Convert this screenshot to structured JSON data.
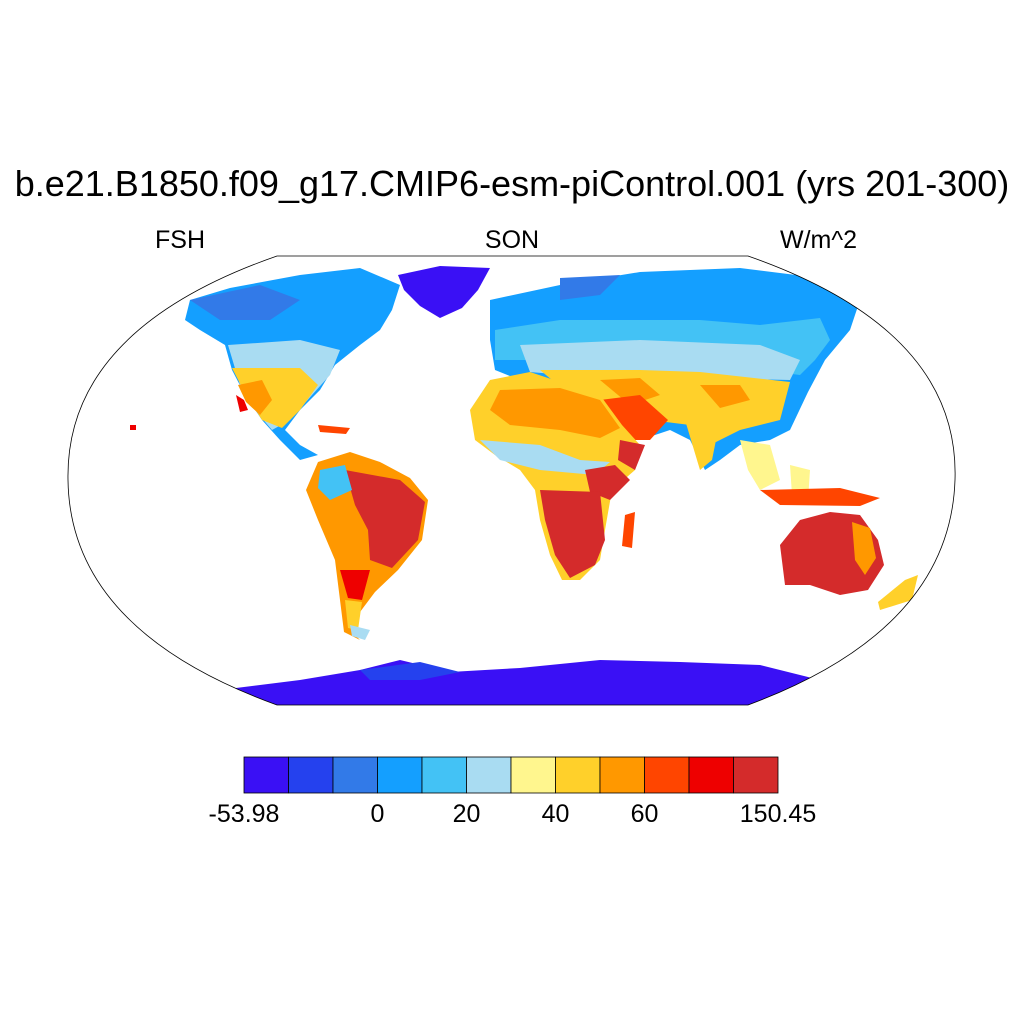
{
  "title": "b.e21.B1850.f09_g17.CMIP6-esm-piControl.001 (yrs 201-300)",
  "subtitle": {
    "left": "FSH",
    "center": "SON",
    "right": "W/m^2"
  },
  "colorbar": {
    "colors": [
      "#3a10f5",
      "#2541ee",
      "#327ae8",
      "#149fff",
      "#43c2f5",
      "#a9dcf2",
      "#fff68e",
      "#ffd02a",
      "#ff9800",
      "#ff4500",
      "#ee0000",
      "#d42b2b"
    ],
    "labels": [
      {
        "text": "-53.98",
        "index": 0
      },
      {
        "text": "0",
        "index": 3
      },
      {
        "text": "20",
        "index": 5
      },
      {
        "text": "40",
        "index": 7
      },
      {
        "text": "60",
        "index": 9
      },
      {
        "text": "150.45",
        "index": 12
      }
    ]
  }
}
